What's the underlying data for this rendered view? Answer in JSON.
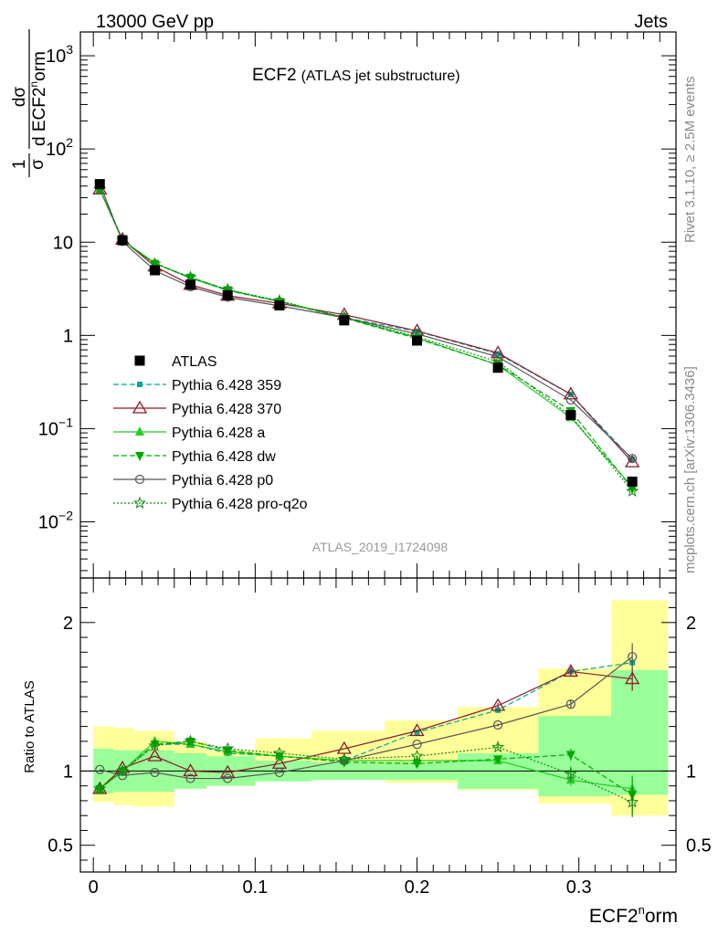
{
  "header": {
    "left": "13000 GeV pp",
    "right": "Jets"
  },
  "plot_title": {
    "main": "ECF2",
    "sub": "(ATLAS jet substructure)"
  },
  "side_labels": {
    "rivet": "Rivet 3.1.10, ≥ 2.5M events",
    "source": "mcplots.cern.ch [arXiv:1306.3436]"
  },
  "analysis_id": "ATLAS_2019_I1724098",
  "upper_axis": {
    "ylabel_parts": {
      "frac_top": "1",
      "frac_bottom": "σ",
      "d_top": "dσ",
      "d_bottom": "d ECF2",
      "d_sup": "n",
      "d_tail": "orm"
    },
    "scale": "log",
    "ylim": [
      0.0025,
      1800
    ],
    "ticks": [
      {
        "value": 0.01,
        "base": "10",
        "exp": "−2"
      },
      {
        "value": 0.1,
        "base": "10",
        "exp": "−1"
      },
      {
        "value": 1,
        "base": "1",
        "exp": ""
      },
      {
        "value": 10,
        "base": "10",
        "exp": ""
      },
      {
        "value": 100,
        "base": "10",
        "exp": "2"
      },
      {
        "value": 1000,
        "base": "10",
        "exp": "3"
      }
    ]
  },
  "ratio_axis": {
    "ylabel": "Ratio to ATLAS",
    "ylim": [
      0.32,
      2.3
    ],
    "ticks": [
      {
        "value": 0.5,
        "label": "0.5"
      },
      {
        "value": 1,
        "label": "1"
      },
      {
        "value": 2,
        "label": "2"
      }
    ]
  },
  "x_axis": {
    "label_main": "ECF2",
    "label_sup": "n",
    "label_tail": "orm",
    "xlim": [
      -0.008,
      0.36
    ],
    "ticks": [
      {
        "value": 0,
        "label": "0"
      },
      {
        "value": 0.1,
        "label": "0.1"
      },
      {
        "value": 0.2,
        "label": "0.2"
      },
      {
        "value": 0.3,
        "label": "0.3"
      }
    ]
  },
  "chart_data": {
    "type": "scatter",
    "bins": [
      {
        "lo": 0.0,
        "hi": 0.0125
      },
      {
        "lo": 0.0125,
        "hi": 0.025
      },
      {
        "lo": 0.025,
        "hi": 0.05
      },
      {
        "lo": 0.05,
        "hi": 0.07
      },
      {
        "lo": 0.07,
        "hi": 0.1
      },
      {
        "lo": 0.1,
        "hi": 0.135
      },
      {
        "lo": 0.135,
        "hi": 0.18
      },
      {
        "lo": 0.18,
        "hi": 0.225
      },
      {
        "lo": 0.225,
        "hi": 0.275
      },
      {
        "lo": 0.275,
        "hi": 0.32
      },
      {
        "lo": 0.32,
        "hi": 0.355
      }
    ],
    "x": [
      0.004,
      0.018,
      0.038,
      0.06,
      0.083,
      0.115,
      0.155,
      0.2,
      0.25,
      0.295,
      0.333
    ],
    "data": {
      "name": "ATLAS",
      "values": [
        42,
        10.5,
        5.0,
        3.5,
        2.7,
        2.1,
        1.45,
        0.88,
        0.45,
        0.14,
        0.027
      ],
      "stat_band": [
        [
          0.85,
          1.15
        ],
        [
          0.86,
          1.14
        ],
        [
          0.86,
          1.14
        ],
        [
          0.88,
          1.12
        ],
        [
          0.9,
          1.1
        ],
        [
          0.93,
          1.07
        ],
        [
          0.94,
          1.06
        ],
        [
          0.94,
          1.06
        ],
        [
          0.88,
          1.12
        ],
        [
          0.83,
          1.37
        ],
        [
          0.84,
          1.68
        ]
      ],
      "total_band": [
        [
          0.79,
          1.3
        ],
        [
          0.77,
          1.29
        ],
        [
          0.76,
          1.27
        ],
        [
          0.89,
          1.2
        ],
        [
          0.9,
          1.14
        ],
        [
          0.94,
          1.22
        ],
        [
          0.94,
          1.27
        ],
        [
          0.92,
          1.34
        ],
        [
          0.87,
          1.43
        ],
        [
          0.78,
          1.69
        ],
        [
          0.7,
          2.15
        ]
      ]
    },
    "series": [
      {
        "name": "Pythia 6.428 359",
        "color": "#00a88f",
        "dash": "6,3",
        "marker": "square-small",
        "ratio": [
          0.88,
          1.0,
          1.18,
          1.18,
          1.12,
          1.1,
          1.07,
          1.26,
          1.41,
          1.67,
          1.73
        ]
      },
      {
        "name": "Pythia 6.428 370",
        "color": "#8b1a2b",
        "dash": "",
        "marker": "triangle-open",
        "ratio": [
          0.88,
          1.02,
          1.1,
          1.0,
          0.99,
          1.05,
          1.15,
          1.27,
          1.44,
          1.67,
          1.62
        ],
        "ratio_err": [
          0,
          0,
          0,
          0,
          0,
          0,
          0,
          0,
          0.02,
          0.03,
          0.08
        ]
      },
      {
        "name": "Pythia 6.428 a",
        "color": "#22cc22",
        "dash": "",
        "marker": "triangle-filled",
        "ratio": [
          0.88,
          1.0,
          1.2,
          1.18,
          1.13,
          1.1,
          1.07,
          1.07,
          1.07,
          0.94,
          0.88
        ],
        "ratio_err": [
          0,
          0,
          0,
          0,
          0,
          0,
          0,
          0,
          0.02,
          0.04,
          0.09
        ]
      },
      {
        "name": "Pythia 6.428 dw",
        "color": "#00aa00",
        "dash": "6,3",
        "marker": "triangle-down-filled",
        "ratio": [
          0.88,
          1.0,
          1.18,
          1.2,
          1.14,
          1.1,
          1.06,
          1.05,
          1.08,
          1.11,
          0.84
        ],
        "ratio_err": [
          0,
          0,
          0,
          0,
          0,
          0,
          0,
          0,
          0.02,
          0.04,
          0.12
        ]
      },
      {
        "name": "Pythia 6.428 p0",
        "color": "#555555",
        "dash": "",
        "marker": "circle-open",
        "ratio": [
          1.01,
          0.97,
          0.99,
          0.95,
          0.95,
          0.99,
          1.07,
          1.18,
          1.31,
          1.45,
          1.77
        ],
        "ratio_err": [
          0,
          0,
          0,
          0,
          0,
          0,
          0,
          0,
          0.01,
          0.03,
          0.09
        ]
      },
      {
        "name": "Pythia 6.428 pro-q2o",
        "color": "#118811",
        "dash": "2,2",
        "marker": "star-open",
        "ratio": [
          0.88,
          1.0,
          1.17,
          1.2,
          1.15,
          1.12,
          1.08,
          1.1,
          1.16,
          0.98,
          0.79
        ],
        "ratio_err": [
          0,
          0,
          0,
          0,
          0,
          0,
          0,
          0,
          0.02,
          0.05,
          0.1
        ]
      }
    ]
  }
}
